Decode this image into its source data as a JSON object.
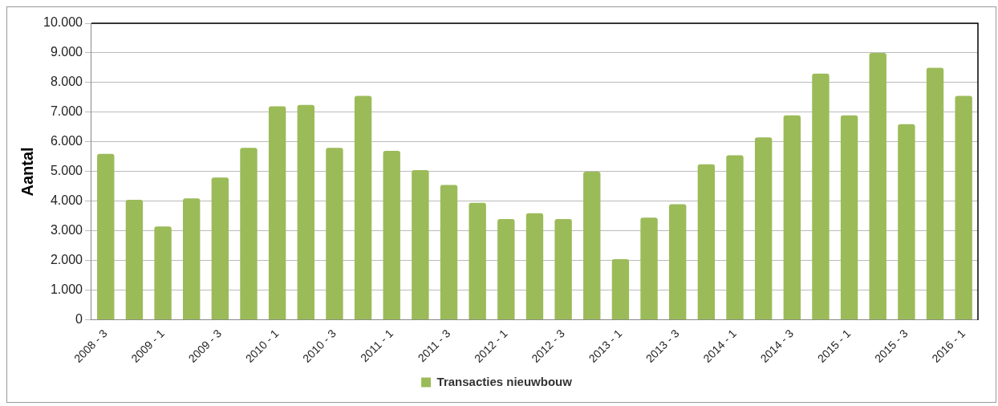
{
  "chart_data": {
    "type": "bar",
    "ylabel": "Aantal",
    "categories": [
      "2008 - 3",
      null,
      "2009 - 1",
      null,
      "2009 - 3",
      null,
      "2010 - 1",
      null,
      "2010 - 3",
      null,
      "2011 - 1",
      null,
      "2011 - 3",
      null,
      "2012 - 1",
      null,
      "2012 - 3",
      null,
      "2013 - 1",
      null,
      "2013 - 3",
      null,
      "2014 - 1",
      null,
      "2014 - 3",
      null,
      "2015 - 1",
      null,
      "2015 - 3",
      null,
      "2016 - 1"
    ],
    "series": [
      {
        "name": "Transacties nieuwbouw",
        "color": "#9bbb59",
        "values": [
          5600,
          4050,
          3150,
          4100,
          4800,
          5800,
          7200,
          7250,
          5800,
          7550,
          5700,
          5050,
          4550,
          3950,
          3400,
          3600,
          3400,
          5000,
          2050,
          3450,
          3900,
          5250,
          5550,
          6150,
          6900,
          8300,
          6900,
          9000,
          6600,
          8500,
          7550
        ]
      }
    ],
    "ylim": [
      0,
      10000
    ],
    "yticks": [
      {
        "value": 0,
        "label": "0"
      },
      {
        "value": 1000,
        "label": "1.000"
      },
      {
        "value": 2000,
        "label": "2.000"
      },
      {
        "value": 3000,
        "label": "3.000"
      },
      {
        "value": 4000,
        "label": "4.000"
      },
      {
        "value": 5000,
        "label": "5.000"
      },
      {
        "value": 6000,
        "label": "6.000"
      },
      {
        "value": 7000,
        "label": "7.000"
      },
      {
        "value": 8000,
        "label": "8.000"
      },
      {
        "value": 9000,
        "label": "9.000"
      },
      {
        "value": 10000,
        "label": "10.000"
      }
    ],
    "grid": "y",
    "legend": "bottom"
  }
}
